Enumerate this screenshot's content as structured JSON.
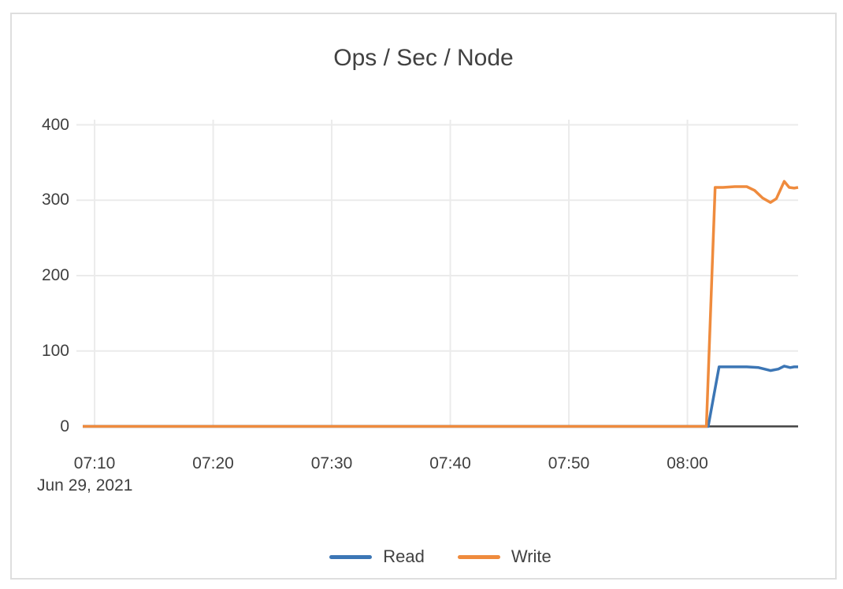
{
  "title": "Ops / Sec / Node",
  "date_label": "Jun 29, 2021",
  "colors": {
    "read": "#3C76B5",
    "write": "#EF8B3D",
    "gridline": "#ebebeb",
    "axis_line": "#424242",
    "text": "#3f3f3f",
    "card_border": "#dedede",
    "background": "#ffffff"
  },
  "legend": {
    "items": [
      {
        "label": "Read",
        "color": "#3C76B5"
      },
      {
        "label": "Write",
        "color": "#EF8B3D"
      }
    ]
  },
  "chart_data": {
    "type": "line",
    "title": "Ops / Sec / Node",
    "xlabel": "",
    "ylabel": "",
    "grid": true,
    "legend_position": "bottom",
    "x_axis": {
      "date": "Jun 29, 2021",
      "start": "07:09:00",
      "end": "08:09:20",
      "tick_labels": [
        "07:10",
        "07:20",
        "07:30",
        "07:40",
        "07:50",
        "08:00"
      ]
    },
    "y_axis": {
      "min": 0,
      "max": 400,
      "ticks": [
        0,
        100,
        200,
        300,
        400
      ]
    },
    "series": [
      {
        "name": "Read",
        "color": "#3C76B5",
        "points": [
          [
            "07:09:00",
            0
          ],
          [
            "07:20:00",
            0
          ],
          [
            "07:30:00",
            0
          ],
          [
            "07:40:00",
            0
          ],
          [
            "07:50:00",
            0
          ],
          [
            "08:00:00",
            0
          ],
          [
            "08:01:45",
            0
          ],
          [
            "08:02:40",
            79
          ],
          [
            "08:03:30",
            79
          ],
          [
            "08:05:00",
            79
          ],
          [
            "08:06:00",
            78
          ],
          [
            "08:06:30",
            76
          ],
          [
            "08:07:00",
            74
          ],
          [
            "08:07:40",
            76
          ],
          [
            "08:08:10",
            80
          ],
          [
            "08:08:40",
            78
          ],
          [
            "08:09:00",
            79
          ],
          [
            "08:09:20",
            79
          ]
        ]
      },
      {
        "name": "Write",
        "color": "#EF8B3D",
        "points": [
          [
            "07:09:00",
            0
          ],
          [
            "07:20:00",
            0
          ],
          [
            "07:30:00",
            0
          ],
          [
            "07:40:00",
            0
          ],
          [
            "07:50:00",
            0
          ],
          [
            "08:00:00",
            0
          ],
          [
            "08:01:36",
            0
          ],
          [
            "08:02:20",
            317
          ],
          [
            "08:03:00",
            317
          ],
          [
            "08:04:00",
            318
          ],
          [
            "08:05:00",
            318
          ],
          [
            "08:05:40",
            313
          ],
          [
            "08:06:20",
            303
          ],
          [
            "08:07:00",
            297
          ],
          [
            "08:07:30",
            302
          ],
          [
            "08:08:10",
            325
          ],
          [
            "08:08:35",
            317
          ],
          [
            "08:09:00",
            316
          ],
          [
            "08:09:20",
            317
          ]
        ]
      }
    ]
  }
}
